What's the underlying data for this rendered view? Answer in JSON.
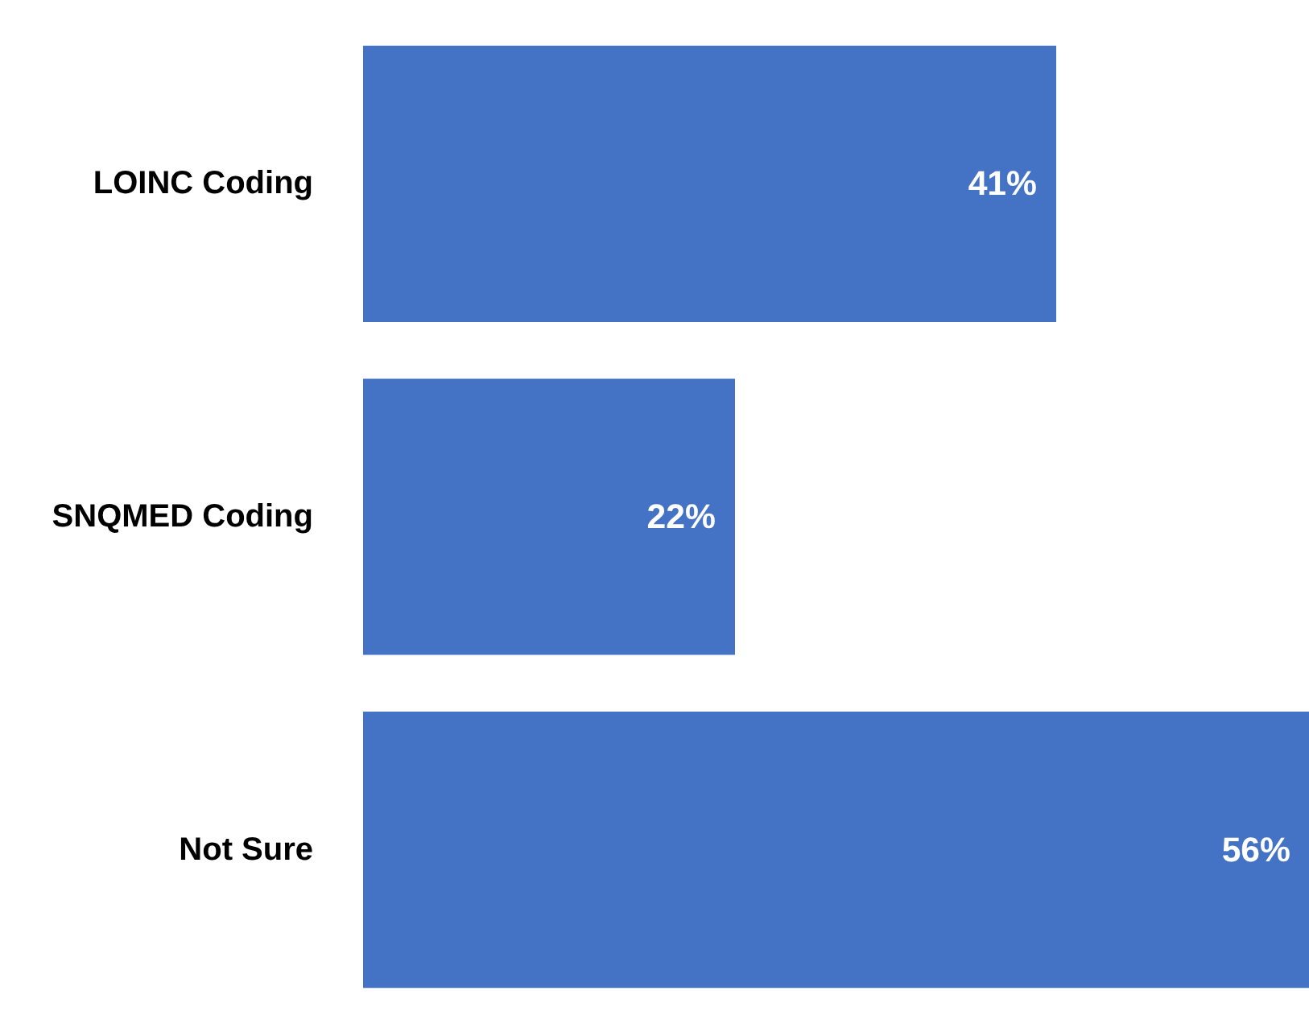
{
  "chart_data": {
    "type": "bar",
    "orientation": "horizontal",
    "categories": [
      "LOINC Coding",
      "SNQMED Coding",
      "Not Sure"
    ],
    "values": [
      41,
      22,
      56
    ],
    "value_labels": [
      "41%",
      "22%",
      "56%"
    ],
    "color": "#4472c4"
  }
}
